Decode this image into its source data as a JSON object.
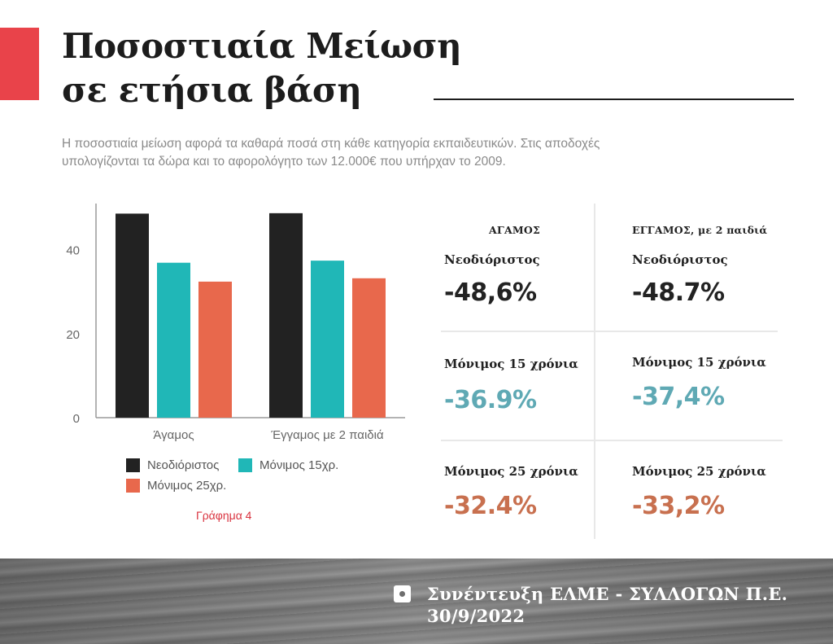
{
  "title_line1": "Ποσοστιαία Μείωση",
  "title_line2": "σε ετήσια βάση",
  "intro_line1": "Η ποσοστιαία μείωση αφορά τα καθαρά ποσά στη κάθε κατηγορία εκπαιδευτικών. Στις αποδοχές",
  "intro_line2": "υπολογίζονται τα δώρα και το αφορολόγητο των 12.000€ που υπήρχαν το 2009.",
  "colors": {
    "accent": "#e9434a",
    "black": "#222222",
    "teal": "#20b7b7",
    "orange": "#e8684c",
    "teal_text": "#5fa9b4",
    "orange_text": "#c8704f"
  },
  "chart_data": {
    "type": "bar",
    "categories": [
      "Άγαμος",
      "Έγγαμος με 2 παιδιά"
    ],
    "series": [
      {
        "name": "Νεοδιόριστος",
        "values": [
          48.6,
          48.7
        ],
        "color": "#222222"
      },
      {
        "name": "Μόνιμος 15χρ.",
        "values": [
          36.9,
          37.4
        ],
        "color": "#20b7b7"
      },
      {
        "name": "Μόνιμος 25χρ.",
        "values": [
          32.4,
          33.2
        ],
        "color": "#e8684c"
      }
    ],
    "yticks": [
      0,
      20,
      40
    ],
    "ylim": [
      0,
      51
    ],
    "grid": false,
    "legend_position": "bottom",
    "caption": "Γράφημα 4"
  },
  "table": {
    "col1_header": "ΑΓΑΜΟΣ",
    "col2_header": "ΕΓΓΑΜΟΣ, με 2 παιδιά",
    "rows": [
      {
        "label1": "Νεοδιόριστος",
        "value1": "-48,6%",
        "label2": "Νεοδιόριστος",
        "value2": "-48.7%"
      },
      {
        "label1": "Μόνιμος 15 χρόνια",
        "value1": "-36.9%",
        "label2": "Μόνιμος 15 χρόνια",
        "value2": "-37,4%"
      },
      {
        "label1": "Μόνιμος 25 χρόνια",
        "value1": "-32.4%",
        "label2": "Μόνιμος 25 χρόνια",
        "value2": "-33,2%"
      }
    ]
  },
  "footer": {
    "line1": "Συνέντευξη ΕΛΜΕ - ΣΥΛΛΟΓΩΝ Π.Ε.",
    "line2": "30/9/2022",
    "icon": "instagram-icon"
  }
}
